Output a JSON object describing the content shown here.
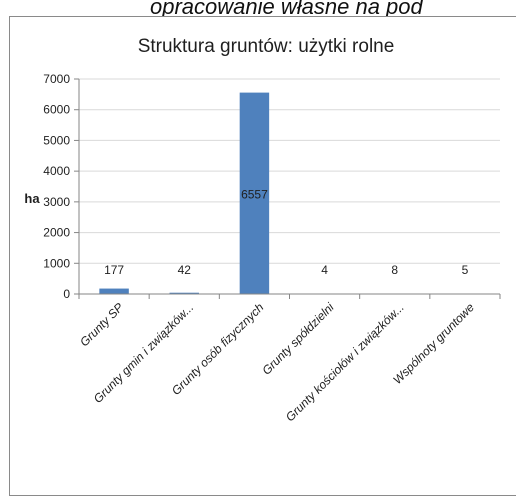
{
  "header": {
    "note": "opracowanie własne na pod"
  },
  "chart_data": {
    "type": "bar",
    "title": "Struktura gruntów: użytki rolne",
    "ylabel": "ha",
    "xlabel": "",
    "ylim": [
      0,
      7000
    ],
    "yticks": [
      0,
      1000,
      2000,
      3000,
      4000,
      5000,
      6000,
      7000
    ],
    "grid": true,
    "legend": "none",
    "categories": [
      "Grunty SP",
      "Grunty gmin i związków...",
      "Grunty osób fizycznych",
      "Grunty spółdzielni",
      "Grunty kościołów i związków...",
      "Wspólnoty gruntowe"
    ],
    "values": [
      177,
      42,
      6557,
      4,
      8,
      5
    ],
    "data_labels": [
      "177",
      "42",
      "6557",
      "4",
      "8",
      "5"
    ],
    "bar_color": "#4f81bd",
    "grid_color": "#d9d9d9",
    "axis_color": "#868686",
    "text_color": "#1f1f1f"
  }
}
